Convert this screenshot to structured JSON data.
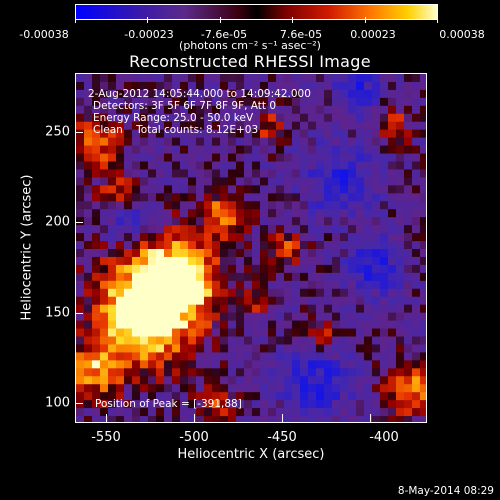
{
  "colorbar": {
    "ticks": [
      "-0.00038",
      "-0.00023",
      "-7.6e-05",
      "7.6e-05",
      "0.00023",
      "0.00038"
    ],
    "units": "(photons cm⁻² s⁻¹ asec⁻²)"
  },
  "title": "Reconstructed RHESSI Image",
  "info": {
    "time_range": "2-Aug-2012 14:05:44.000 to 14:09:42.000",
    "detectors": "Detectors: 3F 5F 6F 7F 8F 9F, Att 0",
    "energy": "Energy Range: 25.0 - 50.0 keV",
    "clean": "Clean    Total counts: 8.12E+03",
    "peak": "Position of Peak = [-391,88]"
  },
  "axes": {
    "xlabel": "Heliocentric X (arcsec)",
    "ylabel": "Heliocentric Y (arcsec)",
    "xticks": [
      "-550",
      "-500",
      "-450",
      "-400"
    ],
    "yticks": [
      "250",
      "200",
      "150",
      "100"
    ]
  },
  "footer": "8-May-2014 08:29",
  "colors": {
    "background": "#000000",
    "foreground": "#ffffff"
  }
}
